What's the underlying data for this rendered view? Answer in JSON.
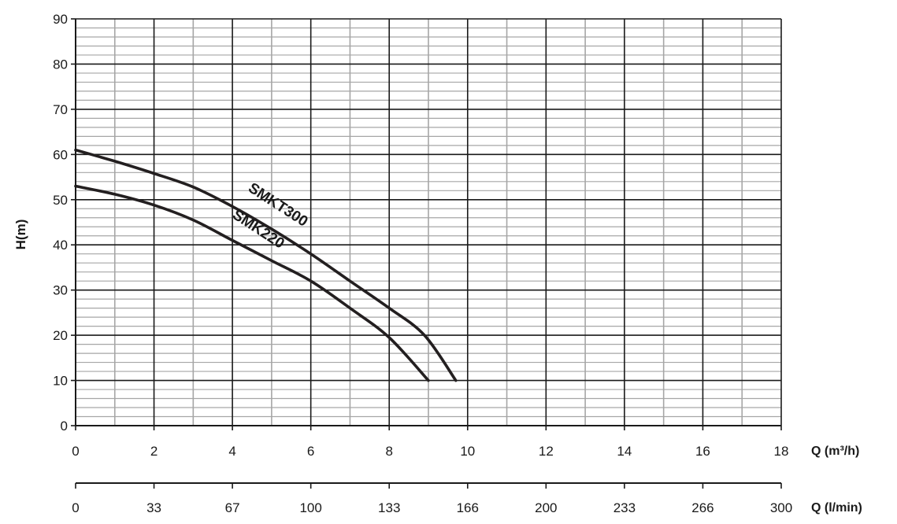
{
  "chart_data": {
    "type": "line",
    "title": "",
    "ylabel": "H(m)",
    "ylim": [
      0,
      90
    ],
    "y_ticks": [
      "0",
      "10",
      "20",
      "30",
      "40",
      "50",
      "60",
      "70",
      "80",
      "90"
    ],
    "x_primary": {
      "unit_label": "Q (m³/h)",
      "xlim": [
        0,
        18
      ],
      "ticks": [
        "0",
        "2",
        "4",
        "6",
        "8",
        "10",
        "12",
        "14",
        "16",
        "18"
      ]
    },
    "x_secondary": {
      "unit_label": "Q (l/min)",
      "xlim": [
        0,
        300
      ],
      "ticks": [
        "0",
        "33",
        "67",
        "100",
        "133",
        "166",
        "200",
        "233",
        "266",
        "300"
      ]
    },
    "grid": true,
    "legend": "none",
    "series": [
      {
        "name": "SMKT300",
        "color": "#231f20",
        "points": [
          [
            0,
            61
          ],
          [
            1,
            58.5
          ],
          [
            2,
            55.8
          ],
          [
            3,
            52.8
          ],
          [
            4,
            48.5
          ],
          [
            5,
            43.5
          ],
          [
            6,
            38
          ],
          [
            7,
            32
          ],
          [
            8,
            26
          ],
          [
            8.9,
            20
          ],
          [
            9.7,
            10
          ]
        ]
      },
      {
        "name": "SMK220",
        "color": "#231f20",
        "points": [
          [
            0,
            53
          ],
          [
            1,
            51.2
          ],
          [
            2,
            48.8
          ],
          [
            3,
            45.5
          ],
          [
            4,
            41
          ],
          [
            5,
            36.5
          ],
          [
            6,
            32
          ],
          [
            7,
            26
          ],
          [
            8,
            19.5
          ],
          [
            9,
            10
          ]
        ]
      }
    ]
  }
}
